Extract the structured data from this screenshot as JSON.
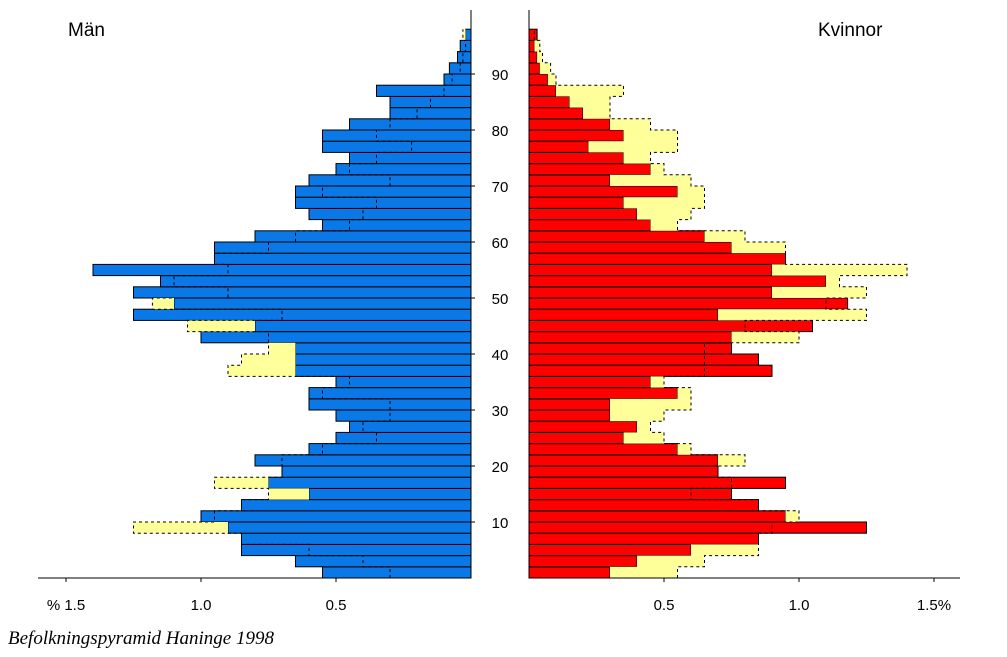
{
  "caption": "Befolkningspyramid Haninge 1998",
  "colors": {
    "men": "#0a78e6",
    "women": "#ff0000",
    "difference": "#ffff99",
    "outline": "#000000"
  },
  "chart_data": {
    "type": "bar",
    "orientation": "horizontal-population-pyramid",
    "title": "",
    "left_label": "Män",
    "right_label": "Kvinnor",
    "unit": "% of population per age year",
    "age_range": [
      0,
      100
    ],
    "age_ticks": [
      10,
      20,
      30,
      40,
      50,
      60,
      70,
      80,
      90
    ],
    "men_axis": {
      "ticks": [
        1.5,
        1.0,
        0.5
      ],
      "tick_labels": [
        "% 1.5",
        "1.0",
        "0.5"
      ],
      "lim": [
        0,
        1.6
      ]
    },
    "women_axis": {
      "ticks": [
        0.5,
        1.0,
        1.5
      ],
      "tick_labels": [
        "0.5",
        "1.0",
        "1.5%"
      ],
      "lim": [
        0,
        1.6
      ]
    },
    "series": [
      {
        "name": "Män",
        "ages": [
          0,
          2,
          4,
          6,
          8,
          10,
          12,
          14,
          16,
          18,
          20,
          22,
          24,
          26,
          28,
          30,
          32,
          34,
          36,
          38,
          40,
          42,
          44,
          46,
          48,
          50,
          52,
          54,
          56,
          58,
          60,
          62,
          64,
          66,
          68,
          70,
          72,
          74,
          76,
          78,
          80,
          82,
          84,
          86,
          88,
          90,
          92,
          94,
          96
        ],
        "values": [
          0.55,
          0.65,
          0.85,
          0.85,
          0.9,
          1.0,
          0.85,
          0.6,
          0.75,
          0.7,
          0.8,
          0.6,
          0.5,
          0.45,
          0.5,
          0.6,
          0.6,
          0.5,
          0.65,
          0.65,
          0.65,
          1.0,
          0.8,
          1.25,
          1.1,
          1.25,
          1.15,
          1.4,
          0.95,
          0.95,
          0.8,
          0.55,
          0.6,
          0.65,
          0.65,
          0.6,
          0.5,
          0.45,
          0.55,
          0.55,
          0.45,
          0.3,
          0.3,
          0.35,
          0.1,
          0.08,
          0.05,
          0.04,
          0.02
        ]
      },
      {
        "name": "Kvinnor",
        "ages": [
          0,
          2,
          4,
          6,
          8,
          10,
          12,
          14,
          16,
          18,
          20,
          22,
          24,
          26,
          28,
          30,
          32,
          34,
          36,
          38,
          40,
          42,
          44,
          46,
          48,
          50,
          52,
          54,
          56,
          58,
          60,
          62,
          64,
          66,
          68,
          70,
          72,
          74,
          76,
          78,
          80,
          82,
          84,
          86,
          88,
          90,
          92,
          94,
          96
        ],
        "values": [
          0.3,
          0.4,
          0.6,
          0.85,
          1.25,
          0.95,
          0.85,
          0.75,
          0.95,
          0.7,
          0.7,
          0.55,
          0.35,
          0.4,
          0.3,
          0.3,
          0.55,
          0.45,
          0.9,
          0.85,
          0.75,
          0.75,
          1.05,
          0.7,
          1.18,
          0.9,
          1.1,
          0.9,
          0.95,
          0.75,
          0.65,
          0.45,
          0.4,
          0.35,
          0.55,
          0.3,
          0.45,
          0.35,
          0.22,
          0.35,
          0.3,
          0.2,
          0.15,
          0.1,
          0.07,
          0.04,
          0.03,
          0.02,
          0.03
        ]
      }
    ],
    "difference_series_name": "",
    "reference_line": "dashed"
  }
}
